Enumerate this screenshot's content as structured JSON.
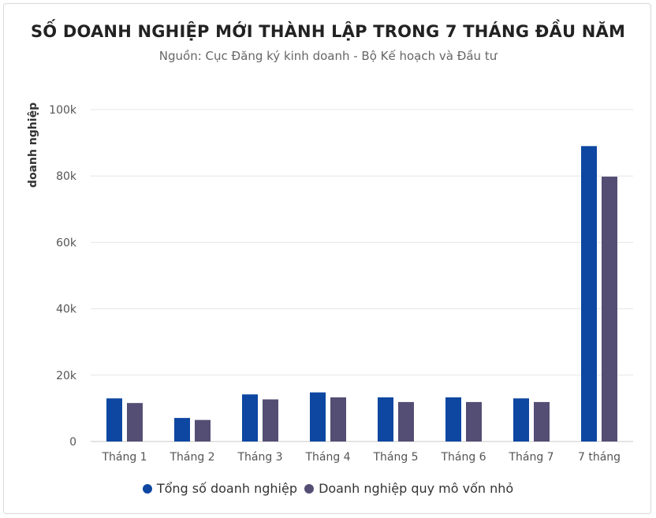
{
  "chart_data": {
    "type": "bar",
    "title": "SỐ DOANH NGHIỆP MỚI THÀNH LẬP TRONG 7 THÁNG ĐẦU NĂM",
    "subtitle": "Nguồn: Cục Đăng ký kinh doanh - Bộ Kế hoạch và Đầu tư",
    "xlabel": "",
    "ylabel": "doanh nghiệp",
    "ylim": [
      0,
      100000
    ],
    "yticks": [
      0,
      20000,
      40000,
      60000,
      80000,
      100000
    ],
    "ytick_labels": [
      "0",
      "20k",
      "40k",
      "60k",
      "80k",
      "100k"
    ],
    "categories": [
      "Tháng 1",
      "Tháng 2",
      "Tháng 3",
      "Tháng 4",
      "Tháng 5",
      "Tháng 6",
      "Tháng 7",
      "7 tháng"
    ],
    "series": [
      {
        "name": "Tổng số doanh nghiệp",
        "color": "#0d47a1",
        "values": [
          13000,
          7100,
          14200,
          14800,
          13300,
          13300,
          13000,
          89000
        ]
      },
      {
        "name": "Doanh nghiệp quy mô vốn nhỏ",
        "color": "#544e74",
        "values": [
          11600,
          6500,
          12700,
          13300,
          11900,
          11900,
          11900,
          79800
        ]
      }
    ],
    "grid": true,
    "legend_position": "bottom"
  }
}
